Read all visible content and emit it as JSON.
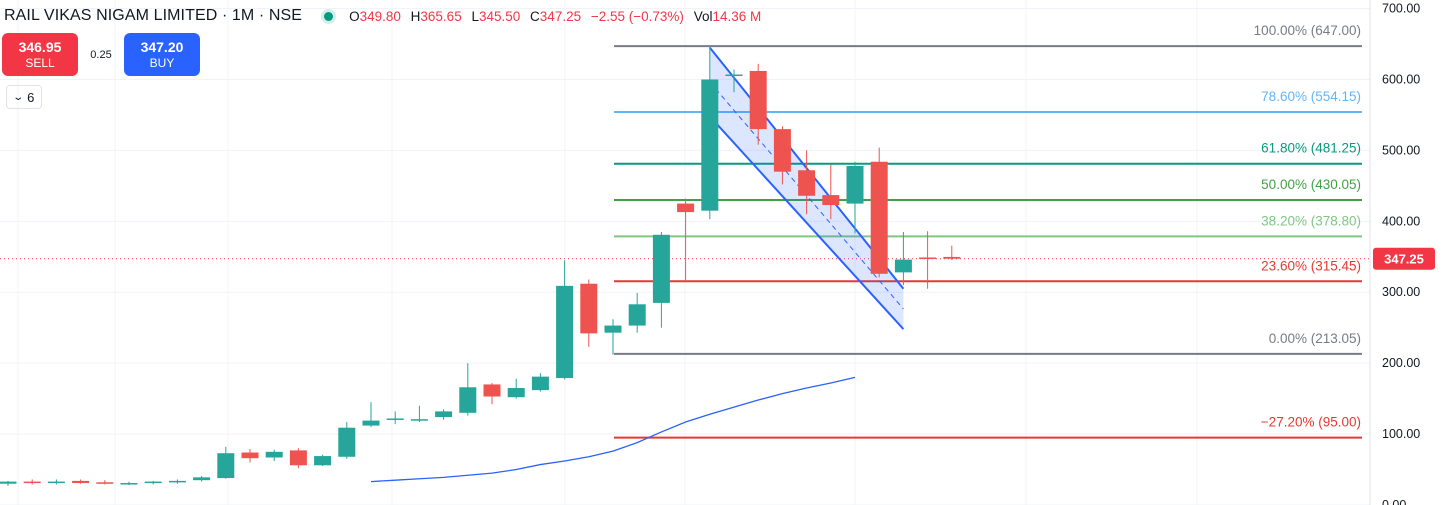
{
  "header": {
    "symbol": "RAIL VIKAS NIGAM LIMITED · 1M · NSE",
    "open_label": "O",
    "open": "349.80",
    "high_label": "H",
    "high": "365.65",
    "low_label": "L",
    "low": "345.50",
    "close_label": "C",
    "close": "347.25",
    "change": "−2.55 (−0.73%)",
    "vol_label": "Vol",
    "vol": "14.36 M"
  },
  "trade": {
    "sell_price": "346.95",
    "sell_label": "SELL",
    "spread": "0.25",
    "buy_price": "347.20",
    "buy_label": "BUY"
  },
  "indicators_toggle": {
    "count": "6"
  },
  "colors": {
    "up": "#26a69a",
    "down": "#ef5350",
    "ma": "#2962ff",
    "channel": "#2962ff",
    "price_tag": "#f23645"
  },
  "chart_data": {
    "type": "candlestick",
    "y_axis": {
      "ticks": [
        "0.00",
        "100.00",
        "200.00",
        "300.00",
        "400.00",
        "500.00",
        "600.00",
        "700.00"
      ],
      "range": [
        0,
        700
      ],
      "position": "right"
    },
    "last_price": "347.25",
    "candles": [
      {
        "o": 30,
        "h": 34,
        "l": 27,
        "c": 33
      },
      {
        "o": 33,
        "h": 36,
        "l": 29,
        "c": 31
      },
      {
        "o": 31,
        "h": 36,
        "l": 29,
        "c": 33
      },
      {
        "o": 34,
        "h": 36,
        "l": 30,
        "c": 31
      },
      {
        "o": 32,
        "h": 35,
        "l": 29,
        "c": 31
      },
      {
        "o": 30,
        "h": 33,
        "l": 28,
        "c": 31
      },
      {
        "o": 31,
        "h": 34,
        "l": 29,
        "c": 33
      },
      {
        "o": 32,
        "h": 36,
        "l": 30,
        "c": 34
      },
      {
        "o": 35,
        "h": 41,
        "l": 33,
        "c": 39
      },
      {
        "o": 38,
        "h": 82,
        "l": 37,
        "c": 73
      },
      {
        "o": 74,
        "h": 79,
        "l": 60,
        "c": 66
      },
      {
        "o": 67,
        "h": 78,
        "l": 62,
        "c": 75
      },
      {
        "o": 77,
        "h": 80,
        "l": 52,
        "c": 56
      },
      {
        "o": 56,
        "h": 71,
        "l": 55,
        "c": 69
      },
      {
        "o": 68,
        "h": 117,
        "l": 65,
        "c": 109
      },
      {
        "o": 112,
        "h": 145,
        "l": 110,
        "c": 119
      },
      {
        "o": 122,
        "h": 132,
        "l": 114,
        "c": 122
      },
      {
        "o": 120,
        "h": 140,
        "l": 117,
        "c": 121
      },
      {
        "o": 124,
        "h": 135,
        "l": 120,
        "c": 132
      },
      {
        "o": 130,
        "h": 200,
        "l": 126,
        "c": 166
      },
      {
        "o": 170,
        "h": 172,
        "l": 142,
        "c": 153
      },
      {
        "o": 152,
        "h": 178,
        "l": 150,
        "c": 165
      },
      {
        "o": 162,
        "h": 186,
        "l": 160,
        "c": 181
      },
      {
        "o": 179,
        "h": 345,
        "l": 177,
        "c": 309
      },
      {
        "o": 312,
        "h": 318,
        "l": 223,
        "c": 242
      },
      {
        "o": 243,
        "h": 262,
        "l": 212,
        "c": 253
      },
      {
        "o": 253,
        "h": 299,
        "l": 243,
        "c": 283
      },
      {
        "o": 285,
        "h": 385,
        "l": 250,
        "c": 381
      },
      {
        "o": 425,
        "h": 432,
        "l": 314,
        "c": 413
      },
      {
        "o": 415,
        "h": 647,
        "l": 403,
        "c": 600
      },
      {
        "o": 605,
        "h": 614,
        "l": 582,
        "c": 607
      },
      {
        "o": 612,
        "h": 622,
        "l": 508,
        "c": 530
      },
      {
        "o": 530,
        "h": 534,
        "l": 452,
        "c": 470
      },
      {
        "o": 472,
        "h": 500,
        "l": 410,
        "c": 436
      },
      {
        "o": 437,
        "h": 480,
        "l": 403,
        "c": 423
      },
      {
        "o": 425,
        "h": 484,
        "l": 383,
        "c": 478
      },
      {
        "o": 484,
        "h": 504,
        "l": 321,
        "c": 326
      },
      {
        "o": 328,
        "h": 385,
        "l": 310,
        "c": 346
      },
      {
        "o": 349,
        "h": 386,
        "l": 305,
        "c": 347
      },
      {
        "o": 349.8,
        "h": 365.65,
        "l": 345.5,
        "c": 347.25
      }
    ],
    "moving_average": {
      "start_index": 15,
      "values": [
        33,
        35,
        37,
        39,
        42,
        45,
        50,
        57,
        62,
        68,
        76,
        88,
        103,
        117,
        128,
        138,
        148,
        157,
        165,
        172,
        180
      ]
    },
    "fibonacci": {
      "start_index": 25,
      "levels": [
        {
          "label": "100.00% (647.00)",
          "value": 647.0,
          "color": "#787b86"
        },
        {
          "label": "78.60% (554.15)",
          "value": 554.15,
          "color": "#64b5f6"
        },
        {
          "label": "61.80% (481.25)",
          "value": 481.25,
          "color": "#089981"
        },
        {
          "label": "50.00% (430.05)",
          "value": 430.05,
          "color": "#43a047"
        },
        {
          "label": "38.20% (378.80)",
          "value": 378.8,
          "color": "#81c784"
        },
        {
          "label": "23.60% (315.45)",
          "value": 315.45,
          "color": "#e53935"
        },
        {
          "label": "0.00% (213.05)",
          "value": 213.05,
          "color": "#787b86"
        },
        {
          "label": "−27.20% (95.00)",
          "value": 95.0,
          "color": "#e53935"
        }
      ]
    },
    "channel": {
      "start_index": 29,
      "end_index": 37,
      "upper": [
        645,
        305
      ],
      "lower": [
        548,
        248
      ]
    }
  }
}
